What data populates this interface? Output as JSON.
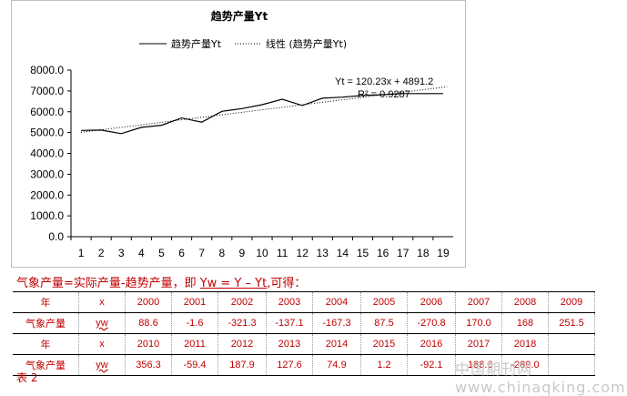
{
  "chart_data": {
    "type": "line",
    "title": "趋势产量Yt",
    "x": [
      1,
      2,
      3,
      4,
      5,
      6,
      7,
      8,
      9,
      10,
      11,
      12,
      13,
      14,
      15,
      16,
      17,
      18,
      19
    ],
    "series": [
      {
        "name": "趋势产量Yt",
        "values": [
          5100,
          5120,
          4950,
          5250,
          5350,
          5700,
          5500,
          6020,
          6150,
          6340,
          6600,
          6300,
          6650,
          6700,
          6780,
          6820,
          6870,
          6870,
          6870
        ],
        "color": "#000000"
      },
      {
        "name": "线性 (趋势产量Yt)",
        "type": "linear-trend",
        "slope": 120.23,
        "intercept": 4891.2,
        "color": "#000000"
      }
    ],
    "legend_position": "top",
    "ylim": [
      0,
      8000
    ],
    "yticks": [
      "0.0",
      "1000.0",
      "2000.0",
      "3000.0",
      "4000.0",
      "5000.0",
      "6000.0",
      "7000.0",
      "8000.0"
    ],
    "xticks": [
      "1",
      "2",
      "3",
      "4",
      "5",
      "6",
      "7",
      "8",
      "9",
      "10",
      "11",
      "12",
      "13",
      "14",
      "15",
      "16",
      "17",
      "18",
      "19"
    ],
    "annotations": [
      "Yt = 120.23x + 4891.2",
      "R² = 0.9287"
    ],
    "grid": false
  },
  "formula": {
    "prefix": "气象产量=实际产量-趋势产量，即 ",
    "equation": "Yw = Y – Yt",
    "suffix": ",可得："
  },
  "table": {
    "rows": [
      [
        "年",
        "x",
        "2000",
        "2001",
        "2002",
        "2003",
        "2004",
        "2005",
        "2006",
        "2007",
        "2008",
        "2009"
      ],
      [
        "气象产量",
        "yw",
        "88.6",
        "-1.6",
        "-321.3",
        "-137.1",
        "-167.3",
        "87.5",
        "-270.8",
        "170.0",
        "168",
        "251.5"
      ],
      [
        "年",
        "x",
        "2010",
        "2011",
        "2012",
        "2013",
        "2014",
        "2015",
        "2016",
        "2017",
        "2018",
        ""
      ],
      [
        "气象产量",
        "yw",
        "356.3",
        "-59.4",
        "187.9",
        "127.6",
        "74.9",
        "1.2",
        "-92.1",
        "-188.6",
        "-289.0",
        ""
      ]
    ]
  },
  "caption": "表 2",
  "watermark": "中国期刊网 www.chinaqking.com"
}
